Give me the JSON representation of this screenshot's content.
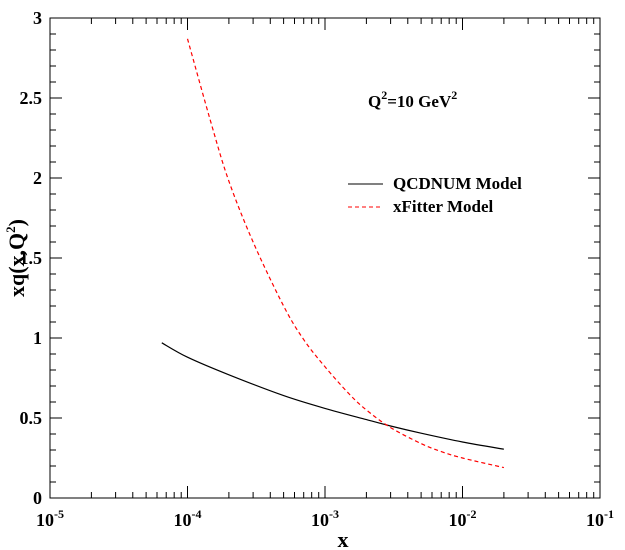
{
  "chart_data": {
    "type": "line",
    "x_scale": "log",
    "xlim": [
      1e-05,
      0.1
    ],
    "ylim": [
      0,
      3
    ],
    "xlabel": {
      "base": "x"
    },
    "ylabel": {
      "base": "xq(x,Q",
      "sup": "2",
      "end": ")"
    },
    "annotation": {
      "prefix": "Q",
      "sup1": "2",
      "mid": "=10 GeV",
      "sup2": "2"
    },
    "x_ticks": [
      {
        "base": "10",
        "exp": "-5",
        "value": 1e-05
      },
      {
        "base": "10",
        "exp": "-4",
        "value": 0.0001
      },
      {
        "base": "10",
        "exp": "-3",
        "value": 0.001
      },
      {
        "base": "10",
        "exp": "-2",
        "value": 0.01
      },
      {
        "base": "10",
        "exp": "-1",
        "value": 0.1
      }
    ],
    "y_ticks": [
      {
        "label": "0",
        "value": 0
      },
      {
        "label": "0.5",
        "value": 0.5
      },
      {
        "label": "1",
        "value": 1
      },
      {
        "label": "1.5",
        "value": 1.5
      },
      {
        "label": "2",
        "value": 2
      },
      {
        "label": "2.5",
        "value": 2.5
      },
      {
        "label": "3",
        "value": 3
      }
    ],
    "legend_position": "upper-right",
    "grid": false,
    "series": [
      {
        "name": "QCDNUM Model",
        "color": "#000000",
        "style": "solid",
        "x": [
          6.5e-05,
          0.0001,
          0.0002,
          0.0005,
          0.001,
          0.002,
          0.003,
          0.005,
          0.01,
          0.02
        ],
        "y": [
          0.97,
          0.88,
          0.77,
          0.64,
          0.56,
          0.49,
          0.45,
          0.405,
          0.35,
          0.305
        ]
      },
      {
        "name": "xFitter Model",
        "color": "#ff0000",
        "style": "dashed",
        "x": [
          0.0001,
          0.00015,
          0.0002,
          0.0003,
          0.0005,
          0.0007,
          0.001,
          0.0015,
          0.002,
          0.003,
          0.005,
          0.007,
          0.01,
          0.02
        ],
        "y": [
          2.87,
          2.33,
          1.98,
          1.6,
          1.2,
          0.99,
          0.82,
          0.65,
          0.55,
          0.44,
          0.34,
          0.29,
          0.25,
          0.19
        ]
      }
    ]
  }
}
